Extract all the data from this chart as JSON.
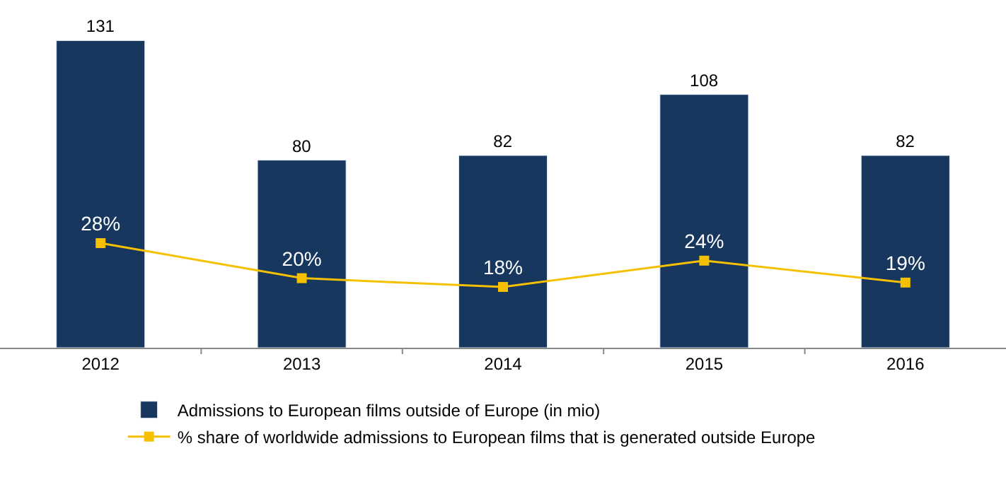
{
  "chart_data": {
    "type": "bar",
    "categories": [
      "2012",
      "2013",
      "2014",
      "2015",
      "2016"
    ],
    "series": [
      {
        "name": "Admissions to European films outside of Europe (in mio)",
        "color": "#17375e",
        "values": [
          131,
          80,
          82,
          108,
          82
        ],
        "value_labels": [
          "131",
          "80",
          "82",
          "108",
          "82"
        ]
      },
      {
        "name": "% share of worldwide admissions to European films that is generated outside Europe",
        "type": "line",
        "axis": "y2",
        "color": "#f5c000",
        "marker": "square",
        "values": [
          28,
          20,
          18,
          24,
          19
        ],
        "value_labels": [
          "28%",
          "20%",
          "18%",
          "24%",
          "19%"
        ]
      }
    ],
    "tick_labels": "x",
    "legend": "bottom"
  }
}
